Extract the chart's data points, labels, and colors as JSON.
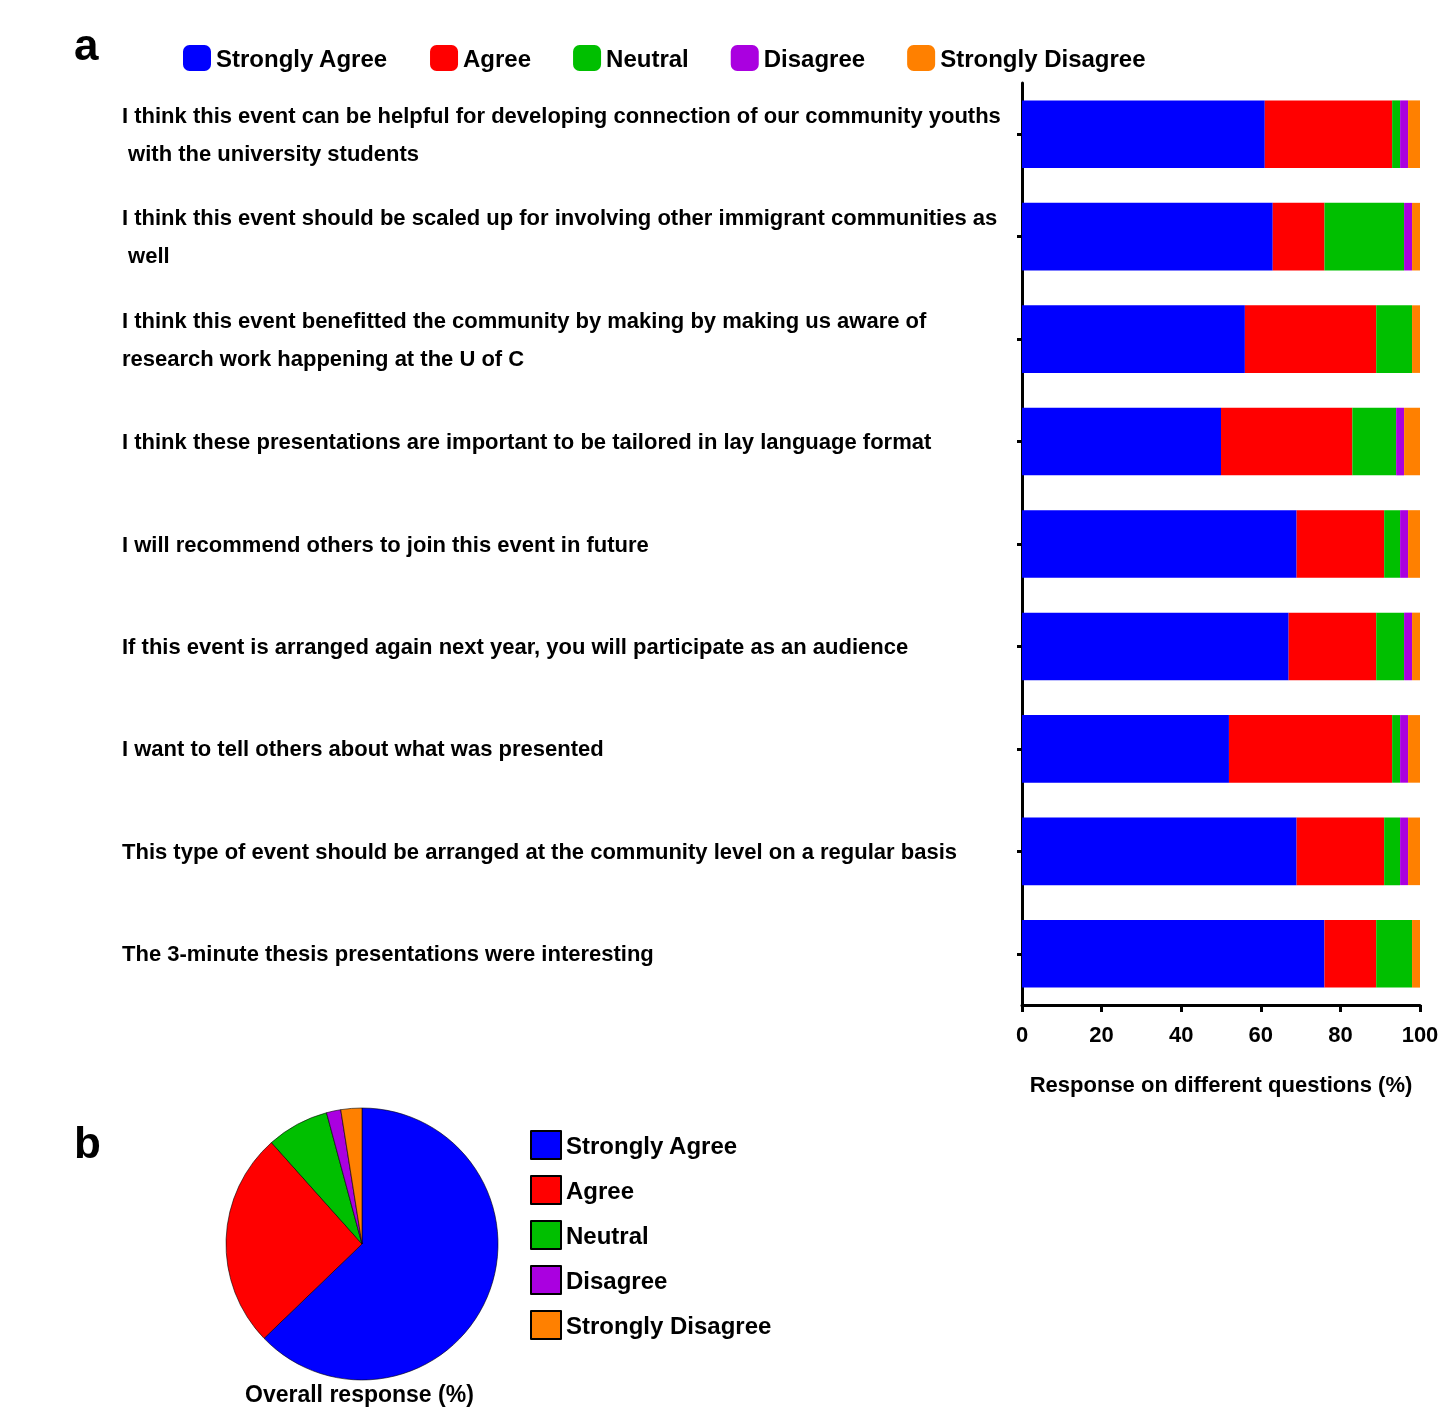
{
  "chart_data": [
    {
      "type": "bar",
      "orientation": "horizontal",
      "stacked": true,
      "xlabel": "Response on different questions (%)",
      "annotations": [
        "a"
      ],
      "legend": "top",
      "grid": false,
      "categories": [
        "I think this event can be helpful for developing connection of our community youths with the university students",
        "I think this event should be scaled up for involving other immigrant communities as well",
        "I think this event benefitted the community by making by making us aware of research work happening at the U of C",
        "I think these presentations are important to be tailored in lay language format",
        "I will recommend others to join this event in future",
        "If this event is arranged again next year, you will participate as an audience",
        "I want to tell others about what was presented",
        "This type of event should be arranged at the community level on a regular basis",
        "The 3-minute thesis presentations were interesting"
      ],
      "xlim": [
        0,
        100
      ],
      "xticks": [
        0,
        20,
        40,
        60,
        80,
        100
      ],
      "series": [
        {
          "name": "Strongly Agree",
          "color": "#0000ff",
          "values": [
            61,
            63,
            56,
            50,
            69,
            67,
            52,
            69,
            76
          ]
        },
        {
          "name": "Agree",
          "color": "#ff0000",
          "values": [
            32,
            13,
            33,
            33,
            22,
            22,
            41,
            22,
            13
          ]
        },
        {
          "name": "Neutral",
          "color": "#00bf00",
          "values": [
            2,
            20,
            9,
            11,
            4,
            7,
            2,
            4,
            9
          ]
        },
        {
          "name": "Disagree",
          "color": "#aa00e0",
          "values": [
            2,
            2,
            0,
            2,
            2,
            2,
            2,
            2,
            0
          ]
        },
        {
          "name": "Strongly Disagree",
          "color": "#ff8000",
          "values": [
            3,
            2,
            2,
            4,
            3,
            2,
            3,
            3,
            2
          ]
        }
      ]
    },
    {
      "type": "pie",
      "title": "Overall response (%)",
      "annotations": [
        "b"
      ],
      "legend": "right",
      "categories": [
        "Strongly Agree",
        "Agree",
        "Neutral",
        "Disagree",
        "Strongly Disagree"
      ],
      "values": [
        62.8,
        25.6,
        7.4,
        1.7,
        2.5
      ],
      "colors": [
        "#0000ff",
        "#ff0000",
        "#00bf00",
        "#aa00e0",
        "#ff8000"
      ]
    }
  ]
}
